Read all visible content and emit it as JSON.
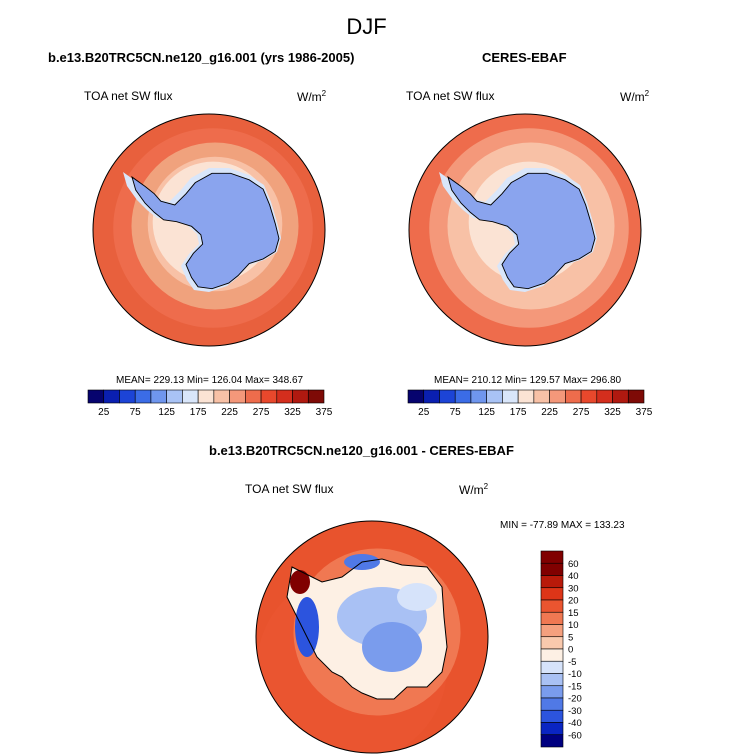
{
  "main_title": "DJF",
  "colors": {
    "ramp_abs": [
      "#06036e",
      "#0a1fb0",
      "#1c44d6",
      "#3b6ce6",
      "#6f96ee",
      "#a9c3f5",
      "#d9e6fa",
      "#fbe3d4",
      "#f8c1a6",
      "#f4987a",
      "#ee6c4c",
      "#e8482c",
      "#d42e1d",
      "#b01910",
      "#7e0a06"
    ],
    "ramp_diff": [
      "#000080",
      "#0a25c2",
      "#2c54de",
      "#5079e6",
      "#7a9ced",
      "#a9c1f4",
      "#d6e3fa",
      "#fdf0e4",
      "#f9c9ad",
      "#f5a07e",
      "#f07852",
      "#ea5530",
      "#dd3518",
      "#b81a0a",
      "#800000"
    ],
    "land_abs": "#8aa4ee",
    "ocean_abs": "#f0a27d",
    "outer_abs": "#e8603d",
    "outer_diff": "#e8532d"
  },
  "chart_data": [
    {
      "type": "heatmap",
      "projection": "south-polar-stereographic",
      "title": "b.e13.B20TRC5CN.ne120_g16.001 (yrs 1986-2005)",
      "variable": "TOA net SW flux",
      "units_base": "W/m",
      "units_exp": "2",
      "stats": "MEAN= 229.13  Min= 126.04  Max= 348.67",
      "mean": 229.13,
      "min": 126.04,
      "max": 348.67,
      "colorbar_levels": [
        25,
        50,
        75,
        100,
        125,
        150,
        175,
        200,
        225,
        250,
        275,
        300,
        325,
        350,
        375
      ],
      "colorbar_tick_labels": [
        "25",
        "75",
        "125",
        "175",
        "225",
        "275",
        "325",
        "375"
      ]
    },
    {
      "type": "heatmap",
      "projection": "south-polar-stereographic",
      "title": "CERES-EBAF",
      "variable": "TOA net SW flux",
      "units_base": "W/m",
      "units_exp": "2",
      "stats": "MEAN= 210.12  Min= 129.57  Max= 296.80",
      "mean": 210.12,
      "min": 129.57,
      "max": 296.8,
      "colorbar_levels": [
        25,
        50,
        75,
        100,
        125,
        150,
        175,
        200,
        225,
        250,
        275,
        300,
        325,
        350,
        375
      ],
      "colorbar_tick_labels": [
        "25",
        "75",
        "125",
        "175",
        "225",
        "275",
        "325",
        "375"
      ]
    },
    {
      "type": "heatmap",
      "projection": "south-polar-stereographic",
      "title": "b.e13.B20TRC5CN.ne120_g16.001 - CERES-EBAF",
      "variable": "TOA net SW flux",
      "units_base": "W/m",
      "units_exp": "2",
      "stats": "MIN = -77.89 MAX = 133.23",
      "min": -77.89,
      "max": 133.23,
      "colorbar_levels": [
        -60,
        -40,
        -30,
        -20,
        -15,
        -10,
        -5,
        0,
        5,
        10,
        15,
        20,
        30,
        40,
        60
      ],
      "colorbar_tick_labels": [
        "60",
        "40",
        "30",
        "20",
        "15",
        "10",
        "5",
        "0",
        "-5",
        "-10",
        "-15",
        "-20",
        "-30",
        "-40",
        "-60"
      ]
    }
  ]
}
